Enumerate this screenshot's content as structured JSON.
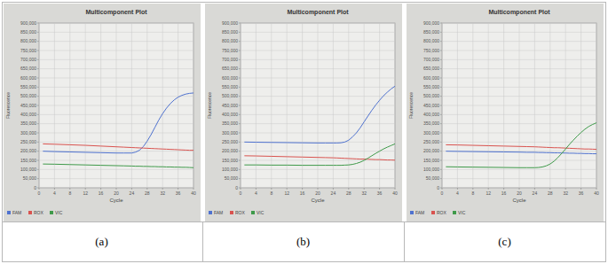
{
  "chart_data": [
    {
      "type": "line",
      "title": "Multicomponent Plot",
      "x_label": "Cycle",
      "y_label": "Fluorescence",
      "caption": "(a)",
      "x": [
        1,
        4,
        8,
        12,
        16,
        20,
        22,
        24,
        25,
        26,
        27,
        28,
        29,
        30,
        31,
        32,
        33,
        34,
        35,
        36,
        37,
        38,
        39,
        40
      ],
      "series": [
        {
          "name": "FAM",
          "color": "#4f72cf",
          "values": [
            200000,
            198000,
            196000,
            194000,
            192000,
            190000,
            190000,
            190000,
            195000,
            205000,
            225000,
            255000,
            290000,
            330000,
            370000,
            405000,
            435000,
            460000,
            480000,
            495000,
            505000,
            512000,
            516000,
            518000
          ]
        },
        {
          "name": "ROX",
          "color": "#d9534f",
          "values": [
            240000,
            238000,
            235000,
            232000,
            228000,
            224000,
            222000,
            220000,
            219000,
            218000,
            217000,
            216000,
            215000,
            214000,
            213000,
            212000,
            211000,
            210000,
            209000,
            208000,
            207000,
            206000,
            205000,
            205000
          ]
        },
        {
          "name": "VIC",
          "color": "#3f9a4a",
          "values": [
            130000,
            129000,
            127000,
            125000,
            123000,
            121000,
            120000,
            119000,
            118000,
            118000,
            117000,
            117000,
            116000,
            116000,
            115000,
            115000,
            114000,
            114000,
            113000,
            113000,
            112000,
            112000,
            111000,
            110000
          ]
        }
      ],
      "xlim": [
        0,
        40
      ],
      "xticks": [
        0,
        4,
        8,
        12,
        16,
        20,
        24,
        28,
        32,
        36,
        40
      ],
      "ylim": [
        0,
        900000
      ],
      "yticks": [
        0,
        {
          "value": 50000,
          "label": "50,000"
        },
        {
          "value": 100000,
          "label": "100,000"
        },
        {
          "value": 150000,
          "label": "150,000"
        },
        {
          "value": 200000,
          "label": "200,000"
        },
        {
          "value": 250000,
          "label": "250,000"
        },
        {
          "value": 300000,
          "label": "300,000"
        },
        {
          "value": 350000,
          "label": "350,000"
        },
        {
          "value": 400000,
          "label": "400,000"
        },
        {
          "value": 450000,
          "label": "450,000"
        },
        {
          "value": 500000,
          "label": "500,000"
        },
        {
          "value": 550000,
          "label": "550,000"
        },
        {
          "value": 600000,
          "label": "600,000"
        },
        {
          "value": 650000,
          "label": "650,000"
        },
        {
          "value": 700000,
          "label": "700,000"
        },
        {
          "value": 750000,
          "label": "750,000"
        },
        {
          "value": 800000,
          "label": "800,000"
        },
        {
          "value": 850000,
          "label": "850,000"
        },
        {
          "value": 900000,
          "label": "900,000"
        }
      ],
      "grid": true,
      "legend": "bottom-left"
    },
    {
      "type": "line",
      "title": "Multicomponent Plot",
      "x_label": "Cycle",
      "y_label": "Fluorescence",
      "caption": "(b)",
      "x": [
        1,
        4,
        8,
        12,
        16,
        20,
        22,
        24,
        25,
        26,
        27,
        28,
        29,
        30,
        31,
        32,
        33,
        34,
        35,
        36,
        37,
        38,
        39,
        40
      ],
      "series": [
        {
          "name": "FAM",
          "color": "#4f72cf",
          "values": [
            250000,
            249000,
            248000,
            247000,
            246000,
            245000,
            245000,
            245000,
            245000,
            246000,
            250000,
            260000,
            278000,
            300000,
            328000,
            360000,
            392000,
            423000,
            452000,
            478000,
            502000,
            522000,
            540000,
            555000
          ]
        },
        {
          "name": "ROX",
          "color": "#d9534f",
          "values": [
            175000,
            174000,
            172000,
            170000,
            168000,
            166000,
            165000,
            164000,
            163000,
            162000,
            161000,
            160000,
            159000,
            158000,
            157000,
            157000,
            156000,
            155000,
            154000,
            154000,
            153000,
            152000,
            152000,
            151000
          ]
        },
        {
          "name": "VIC",
          "color": "#3f9a4a",
          "values": [
            125000,
            125000,
            124000,
            124000,
            123000,
            123000,
            123000,
            123000,
            123000,
            123000,
            124000,
            125000,
            128000,
            133000,
            140000,
            150000,
            162000,
            175000,
            188000,
            200000,
            212000,
            222000,
            231000,
            240000
          ]
        }
      ],
      "xlim": [
        0,
        40
      ],
      "xticks": [
        0,
        4,
        8,
        12,
        16,
        20,
        24,
        28,
        32,
        36,
        40
      ],
      "ylim": [
        0,
        900000
      ],
      "yticks": [
        0,
        {
          "value": 50000,
          "label": "50,000"
        },
        {
          "value": 100000,
          "label": "100,000"
        },
        {
          "value": 150000,
          "label": "150,000"
        },
        {
          "value": 200000,
          "label": "200,000"
        },
        {
          "value": 250000,
          "label": "250,000"
        },
        {
          "value": 300000,
          "label": "300,000"
        },
        {
          "value": 350000,
          "label": "350,000"
        },
        {
          "value": 400000,
          "label": "400,000"
        },
        {
          "value": 450000,
          "label": "450,000"
        },
        {
          "value": 500000,
          "label": "500,000"
        },
        {
          "value": 550000,
          "label": "550,000"
        },
        {
          "value": 600000,
          "label": "600,000"
        },
        {
          "value": 650000,
          "label": "650,000"
        },
        {
          "value": 700000,
          "label": "700,000"
        },
        {
          "value": 750000,
          "label": "750,000"
        },
        {
          "value": 800000,
          "label": "800,000"
        },
        {
          "value": 850000,
          "label": "850,000"
        },
        {
          "value": 900000,
          "label": "900,000"
        }
      ],
      "grid": true,
      "legend": "bottom-left"
    },
    {
      "type": "line",
      "title": "Multicomponent Plot",
      "x_label": "Cycle",
      "y_label": "Fluorescence",
      "caption": "(c)",
      "x": [
        1,
        4,
        8,
        12,
        16,
        20,
        22,
        24,
        25,
        26,
        27,
        28,
        29,
        30,
        31,
        32,
        33,
        34,
        35,
        36,
        37,
        38,
        39,
        40
      ],
      "series": [
        {
          "name": "FAM",
          "color": "#4f72cf",
          "values": [
            200000,
            199000,
            198000,
            197000,
            196000,
            195000,
            194000,
            194000,
            193000,
            193000,
            192000,
            192000,
            191000,
            191000,
            190000,
            190000,
            189000,
            189000,
            188000,
            188000,
            187000,
            187000,
            186000,
            186000
          ]
        },
        {
          "name": "ROX",
          "color": "#d9534f",
          "values": [
            235000,
            234000,
            232000,
            230000,
            228000,
            226000,
            225000,
            224000,
            223000,
            222000,
            221000,
            220000,
            219000,
            219000,
            218000,
            217000,
            216000,
            215000,
            214000,
            213000,
            212000,
            212000,
            211000,
            210000
          ]
        },
        {
          "name": "VIC",
          "color": "#3f9a4a",
          "values": [
            115000,
            114000,
            113000,
            112000,
            111000,
            110000,
            110000,
            110000,
            111000,
            114000,
            120000,
            130000,
            145000,
            165000,
            188000,
            212000,
            237000,
            260000,
            282000,
            302000,
            320000,
            335000,
            346000,
            355000
          ]
        }
      ],
      "xlim": [
        0,
        40
      ],
      "xticks": [
        0,
        4,
        8,
        12,
        16,
        20,
        24,
        28,
        32,
        36,
        40
      ],
      "ylim": [
        0,
        900000
      ],
      "yticks": [
        0,
        {
          "value": 50000,
          "label": "50,000"
        },
        {
          "value": 100000,
          "label": "100,000"
        },
        {
          "value": 150000,
          "label": "150,000"
        },
        {
          "value": 200000,
          "label": "200,000"
        },
        {
          "value": 250000,
          "label": "250,000"
        },
        {
          "value": 300000,
          "label": "300,000"
        },
        {
          "value": 350000,
          "label": "350,000"
        },
        {
          "value": 400000,
          "label": "400,000"
        },
        {
          "value": 450000,
          "label": "450,000"
        },
        {
          "value": 500000,
          "label": "500,000"
        },
        {
          "value": 550000,
          "label": "550,000"
        },
        {
          "value": 600000,
          "label": "600,000"
        },
        {
          "value": 650000,
          "label": "650,000"
        },
        {
          "value": 700000,
          "label": "700,000"
        },
        {
          "value": 750000,
          "label": "750,000"
        },
        {
          "value": 800000,
          "label": "800,000"
        },
        {
          "value": 850000,
          "label": "850,000"
        },
        {
          "value": 900000,
          "label": "900,000"
        }
      ],
      "grid": true,
      "legend": "bottom-left"
    }
  ]
}
